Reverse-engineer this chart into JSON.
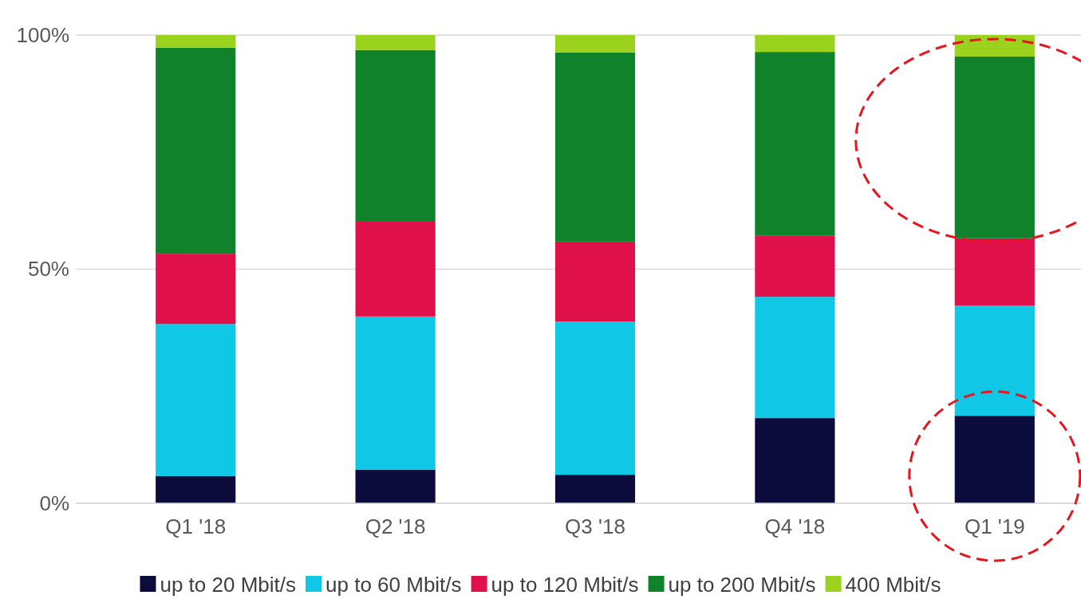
{
  "chart_data": {
    "type": "bar",
    "stacked": true,
    "categories": [
      "Q1 '18",
      "Q2 '18",
      "Q3 '18",
      "Q4 '18",
      "Q1 '19"
    ],
    "series": [
      {
        "name": "up to 20 Mbit/s",
        "color": "#0c0c3c",
        "values": [
          5.8,
          7.2,
          6.1,
          18.2,
          18.7
        ]
      },
      {
        "name": "up to 60 Mbit/s",
        "color": "#10c8e6",
        "values": [
          32.5,
          32.7,
          32.7,
          25.9,
          23.5
        ]
      },
      {
        "name": "up to 120 Mbit/s",
        "color": "#e0104a",
        "values": [
          15,
          20.4,
          17.1,
          13.1,
          14.4
        ]
      },
      {
        "name": "up to 200 Mbit/s",
        "color": "#10822c",
        "values": [
          44,
          36.5,
          40.4,
          39.2,
          38.8
        ]
      },
      {
        "name": "400 Mbit/s",
        "color": "#9ad21e",
        "values": [
          2.7,
          3.2,
          3.7,
          3.6,
          4.6
        ]
      }
    ],
    "ylim": [
      0,
      100
    ],
    "yticks": [
      {
        "value": 0,
        "label": "0%"
      },
      {
        "value": 50,
        "label": "50%"
      },
      {
        "value": 100,
        "label": "100%"
      }
    ],
    "grid": "y",
    "legend": "bottom"
  }
}
